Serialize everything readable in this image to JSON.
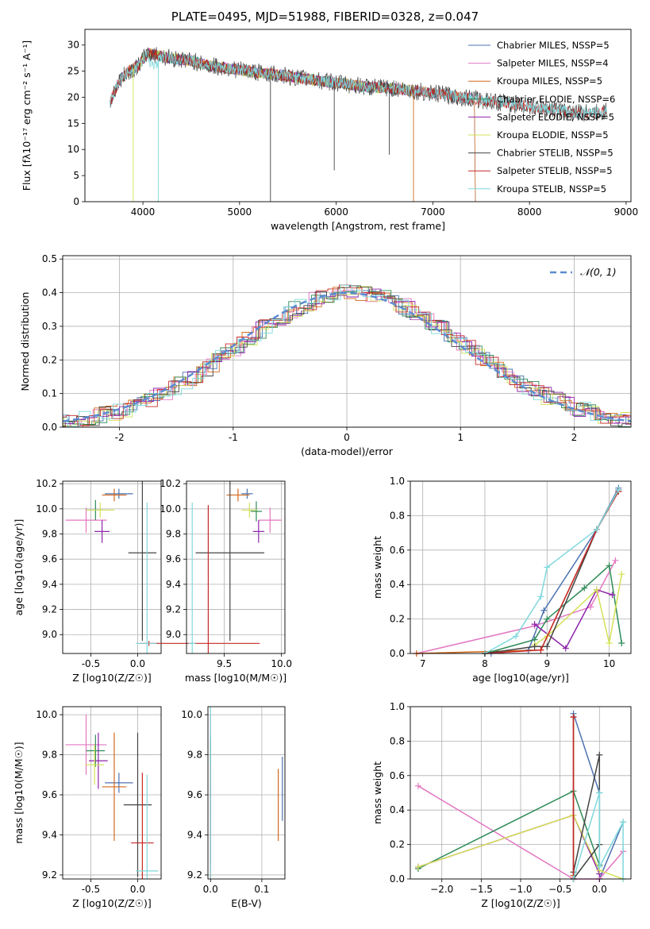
{
  "title": "PLATE=0495, MJD=51988, FIBERID=0328, z=0.047",
  "chart_data": [
    {
      "type": "line",
      "xlabel": "wavelength [Angstrom, rest frame]",
      "ylabel": "Flux [fλ10⁻¹⁷ erg cm⁻² s⁻¹ A⁻¹]",
      "xlim": [
        3400,
        9050
      ],
      "ylim": [
        0,
        33
      ],
      "xticks": [
        4000,
        5000,
        6000,
        7000,
        8000,
        9000
      ],
      "yticks": [
        0,
        5,
        10,
        15,
        20,
        25,
        30
      ],
      "legend_position": "top-right",
      "series": [
        {
          "name": "Chabrier MILES, NSSP=5",
          "color": "#4c72b0",
          "x_range": [
            3660,
            7430
          ]
        },
        {
          "name": "Salpeter MILES, NSSP=4",
          "color": "#e377c2",
          "x_range": [
            3660,
            7430
          ]
        },
        {
          "name": "Kroupa MILES, NSSP=5",
          "color": "#d2691e",
          "x_range": [
            3660,
            7430
          ]
        },
        {
          "name": "Chabrier ELODIE, NSSP=6",
          "color": "#2e8b57",
          "x_range": [
            3900,
            6800
          ]
        },
        {
          "name": "Salpeter ELODIE, NSSP=5",
          "color": "#8e24aa",
          "x_range": [
            3900,
            6800
          ]
        },
        {
          "name": "Kroupa ELODIE, NSSP=5",
          "color": "#d4e157",
          "x_range": [
            3900,
            6800
          ]
        },
        {
          "name": "Chabrier STELIB, NSSP=5",
          "color": "#444444",
          "x_range": [
            3660,
            8800
          ]
        },
        {
          "name": "Salpeter STELIB, NSSP=5",
          "color": "#c62828",
          "x_range": [
            3660,
            8800
          ]
        },
        {
          "name": "Kroupa STELIB, NSSP=5",
          "color": "#7fd8dc",
          "x_range": [
            3660,
            8800
          ]
        }
      ],
      "spectrum_approx": {
        "x": [
          3660,
          3750,
          3850,
          3950,
          4050,
          4150,
          4300,
          4500,
          4700,
          4900,
          5100,
          5300,
          5500,
          5700,
          5900,
          6100,
          6300,
          6500,
          6700,
          6900,
          7100,
          7300,
          7500,
          7700,
          7900,
          8100,
          8300,
          8500,
          8700,
          8800
        ],
        "y": [
          19,
          23,
          25,
          26,
          28.5,
          28,
          27.5,
          27,
          26,
          25.5,
          25,
          24.5,
          24,
          23.5,
          23,
          22.5,
          22,
          21.8,
          21.5,
          21,
          20.5,
          20,
          19.5,
          19,
          18.5,
          18,
          17.5,
          17,
          17,
          17.5
        ]
      }
    },
    {
      "type": "bar",
      "xlabel": "(data-model)/error",
      "ylabel": "Normed distribution",
      "xlim": [
        -2.5,
        2.5
      ],
      "ylim": [
        0,
        0.51
      ],
      "xticks": [
        -2,
        -1,
        0,
        1,
        2
      ],
      "yticks": [
        0.0,
        0.1,
        0.2,
        0.3,
        0.4,
        0.5
      ],
      "legend": [
        "𝒩(0, 1)"
      ],
      "legend_position": "top-right",
      "grid": true,
      "gaussian_series": [
        {
          "name": "𝒩(0, 1)",
          "color": "#4c72b0"
        }
      ]
    },
    {
      "type": "scatter",
      "xlabel": "Z [log10(Z/Z☉)]",
      "ylabel": "age  [log10(age/yr)]",
      "xlim": [
        -0.8,
        0.25
      ],
      "ylim": [
        8.85,
        10.22
      ],
      "xticks": [
        -0.5,
        0.0
      ],
      "yticks": [
        9.0,
        9.2,
        9.4,
        9.6,
        9.8,
        10.0,
        10.2
      ],
      "grid": true,
      "points": [
        {
          "x": -0.2,
          "y": 10.12,
          "ex": 0.15,
          "ey": 0.04,
          "color": "#4c72b0"
        },
        {
          "x": -0.25,
          "y": 10.11,
          "ex": 0.13,
          "ey": 0.05,
          "color": "#d2691e"
        },
        {
          "x": -0.55,
          "y": 9.91,
          "ex": 0.22,
          "ey": 0.1,
          "color": "#e377c2"
        },
        {
          "x": -0.45,
          "y": 9.99,
          "ex": 0.1,
          "ey": 0.08,
          "color": "#2e8b57"
        },
        {
          "x": -0.38,
          "y": 9.82,
          "ex": 0.08,
          "ey": 0.09,
          "color": "#8e24aa"
        },
        {
          "x": -0.4,
          "y": 9.99,
          "ex": 0.15,
          "ey": 0.06,
          "color": "#d4e157"
        },
        {
          "x": 0.05,
          "y": 9.65,
          "ex": 0.15,
          "ey": 0.7,
          "color": "#444444"
        },
        {
          "x": 0.12,
          "y": 8.93,
          "ex": 0.1,
          "ey": 0.02,
          "color": "#c62828"
        },
        {
          "x": 0.1,
          "y": 8.93,
          "ex": 0.12,
          "ey": 1.12,
          "color": "#7fd8dc"
        }
      ]
    },
    {
      "type": "scatter",
      "xlabel": "mass [log10(M/M☉)]",
      "ylabel": "",
      "xlim": [
        9.17,
        10.03
      ],
      "ylim": [
        8.85,
        10.22
      ],
      "xticks": [
        9.5,
        10.0
      ],
      "yticks": [
        9.0,
        9.2,
        9.4,
        9.6,
        9.8,
        10.0,
        10.2
      ],
      "grid": true,
      "points": [
        {
          "x": 9.7,
          "y": 10.12,
          "ex": 0.05,
          "ey": 0.04,
          "color": "#4c72b0"
        },
        {
          "x": 9.62,
          "y": 10.11,
          "ex": 0.1,
          "ey": 0.05,
          "color": "#d2691e"
        },
        {
          "x": 9.9,
          "y": 9.91,
          "ex": 0.1,
          "ey": 0.1,
          "color": "#e377c2"
        },
        {
          "x": 9.78,
          "y": 9.98,
          "ex": 0.05,
          "ey": 0.08,
          "color": "#2e8b57"
        },
        {
          "x": 9.8,
          "y": 9.82,
          "ex": 0.05,
          "ey": 0.09,
          "color": "#8e24aa"
        },
        {
          "x": 9.72,
          "y": 9.99,
          "ex": 0.07,
          "ey": 0.06,
          "color": "#d4e157"
        },
        {
          "x": 9.55,
          "y": 9.65,
          "ex": 0.3,
          "ey": 0.7,
          "color": "#444444"
        },
        {
          "x": 9.36,
          "y": 8.93,
          "ex": 0.45,
          "ey": 1.1,
          "color": "#c62828"
        },
        {
          "x": 9.22,
          "y": 8.93,
          "ex": 0.03,
          "ey": 1.12,
          "color": "#7fd8dc"
        }
      ]
    },
    {
      "type": "line",
      "xlabel": "age  [log10(age/yr)]",
      "ylabel": "mass weight",
      "xlim": [
        6.8,
        10.35
      ],
      "ylim": [
        0,
        1.0
      ],
      "xticks": [
        7,
        8,
        9,
        10
      ],
      "yticks": [
        0.0,
        0.2,
        0.4,
        0.6,
        0.8,
        1.0
      ],
      "grid": true,
      "series": [
        {
          "name": "Chabrier MILES",
          "color": "#4c72b0",
          "x": [
            8.1,
            8.7,
            8.95,
            9.8,
            10.15
          ],
          "y": [
            0.0,
            0.02,
            0.25,
            0.72,
            0.96
          ]
        },
        {
          "name": "Salpeter MILES",
          "color": "#e377c2",
          "x": [
            6.9,
            8.8,
            9.7,
            10.1
          ],
          "y": [
            0.0,
            0.16,
            0.27,
            0.54
          ]
        },
        {
          "name": "Kroupa MILES",
          "color": "#d2691e",
          "x": [
            6.9,
            8.9,
            9.8,
            10.15
          ],
          "y": [
            0.0,
            0.02,
            0.72,
            0.94
          ]
        },
        {
          "name": "Chabrier ELODIE",
          "color": "#2e8b57",
          "x": [
            8.0,
            8.8,
            9.0,
            9.6,
            10.0,
            10.2
          ],
          "y": [
            0.0,
            0.08,
            0.2,
            0.38,
            0.51,
            0.06
          ]
        },
        {
          "name": "Salpeter ELODIE",
          "color": "#8e24aa",
          "x": [
            8.8,
            9.3,
            9.8,
            10.05
          ],
          "y": [
            0.17,
            0.03,
            0.37,
            0.34
          ]
        },
        {
          "name": "Kroupa ELODIE",
          "color": "#d4e157",
          "x": [
            8.8,
            9.0,
            9.8,
            10.0,
            10.2
          ],
          "y": [
            0.05,
            0.1,
            0.37,
            0.06,
            0.46
          ]
        },
        {
          "name": "Chabrier STELIB",
          "color": "#444444",
          "x": [
            8.0,
            8.8,
            9.0,
            9.8,
            10.15
          ],
          "y": [
            0.0,
            0.04,
            0.04,
            0.72,
            0.95
          ]
        },
        {
          "name": "Salpeter STELIB",
          "color": "#c62828",
          "x": [
            8.0,
            8.9,
            9.8,
            10.15
          ],
          "y": [
            0.0,
            0.02,
            0.72,
            0.94
          ]
        },
        {
          "name": "Kroupa STELIB",
          "color": "#7fd8dc",
          "x": [
            8.0,
            8.5,
            8.9,
            9.0,
            9.8,
            10.15
          ],
          "y": [
            0.0,
            0.1,
            0.33,
            0.5,
            0.72,
            0.95
          ]
        }
      ]
    },
    {
      "type": "scatter",
      "xlabel": "Z [log10(Z/Z☉)]",
      "ylabel": "mass [log10(M/M☉)]",
      "xlim": [
        -0.8,
        0.25
      ],
      "ylim": [
        9.18,
        10.04
      ],
      "xticks": [
        -0.5,
        0.0
      ],
      "yticks": [
        9.2,
        9.4,
        9.6,
        9.8,
        10.0
      ],
      "grid": true,
      "points": [
        {
          "x": -0.2,
          "y": 9.66,
          "ex": 0.15,
          "ey": 0.05,
          "color": "#4c72b0"
        },
        {
          "x": -0.25,
          "y": 9.64,
          "ex": 0.13,
          "ey": 0.27,
          "color": "#d2691e"
        },
        {
          "x": -0.55,
          "y": 9.85,
          "ex": 0.22,
          "ey": 0.15,
          "color": "#e377c2"
        },
        {
          "x": -0.45,
          "y": 9.82,
          "ex": 0.1,
          "ey": 0.08,
          "color": "#2e8b57"
        },
        {
          "x": -0.42,
          "y": 9.77,
          "ex": 0.1,
          "ey": 0.14,
          "color": "#8e24aa"
        },
        {
          "x": -0.46,
          "y": 9.75,
          "ex": 0.1,
          "ey": 0.1,
          "color": "#d4e157"
        },
        {
          "x": 0.0,
          "y": 9.55,
          "ex": 0.15,
          "ey": 0.36,
          "color": "#444444"
        },
        {
          "x": 0.05,
          "y": 9.36,
          "ex": 0.12,
          "ey": 0.35,
          "color": "#c62828"
        },
        {
          "x": 0.1,
          "y": 9.22,
          "ex": 0.12,
          "ey": 0.48,
          "color": "#7fd8dc"
        }
      ]
    },
    {
      "type": "scatter",
      "xlabel": "E(B-V)",
      "ylabel": "",
      "xlim": [
        -0.005,
        0.145
      ],
      "ylim": [
        9.18,
        10.04
      ],
      "xticks": [
        0.0,
        0.1
      ],
      "yticks": [
        9.2,
        9.4,
        9.6,
        9.8,
        10.0
      ],
      "grid": true,
      "points": [
        {
          "x": 0.0,
          "y": 9.66,
          "ey": 0.18,
          "color": "#4c72b0"
        },
        {
          "x": 0.0,
          "y": 9.9,
          "ey": 0.1,
          "color": "#e377c2"
        },
        {
          "x": 0.132,
          "y": 9.55,
          "ey": 0.18,
          "color": "#d2691e"
        },
        {
          "x": 0.0,
          "y": 9.82,
          "ey": 0.08,
          "color": "#2e8b57"
        },
        {
          "x": 0.0,
          "y": 9.77,
          "ey": 0.1,
          "color": "#8e24aa"
        },
        {
          "x": 0.0,
          "y": 9.75,
          "ey": 0.1,
          "color": "#d4e157"
        },
        {
          "x": 0.0,
          "y": 9.55,
          "ey": 0.3,
          "color": "#444444"
        },
        {
          "x": 0.0,
          "y": 9.45,
          "ey": 0.3,
          "color": "#c62828"
        },
        {
          "x": 0.0,
          "y": 9.45,
          "ey": 0.6,
          "color": "#7fd8dc"
        },
        {
          "x": 0.14,
          "y": 9.63,
          "ey": 0.16,
          "color": "#4c72b0"
        }
      ]
    },
    {
      "type": "line",
      "xlabel": "Z [log10(Z/Z☉)]",
      "ylabel": "mass weight",
      "xlim": [
        -2.4,
        0.4
      ],
      "ylim": [
        0,
        1.0
      ],
      "xticks": [
        -2.0,
        -1.5,
        -1.0,
        -0.5,
        0.0
      ],
      "yticks": [
        0.0,
        0.2,
        0.4,
        0.6,
        0.8,
        1.0
      ],
      "grid": true,
      "series": [
        {
          "name": "Chabrier MILES",
          "color": "#4c72b0",
          "x": [
            -0.33,
            -0.33,
            0.0,
            0.0,
            0.3
          ],
          "y": [
            0.0,
            0.96,
            0.5,
            0.0,
            0.33
          ]
        },
        {
          "name": "Salpeter MILES",
          "color": "#e377c2",
          "x": [
            -2.3,
            -0.33,
            0.0,
            0.3
          ],
          "y": [
            0.54,
            0.0,
            0.0,
            0.16
          ]
        },
        {
          "name": "Kroupa MILES",
          "color": "#d2691e",
          "x": [
            -0.33,
            -0.33,
            -0.33
          ],
          "y": [
            0.0,
            0.94,
            0.02
          ]
        },
        {
          "name": "Chabrier ELODIE",
          "color": "#2e8b57",
          "x": [
            -2.3,
            -0.33,
            0.0
          ],
          "y": [
            0.06,
            0.51,
            0.08
          ]
        },
        {
          "name": "Salpeter ELODIE",
          "color": "#8e24aa",
          "x": [
            -2.3,
            -0.33,
            0.0
          ],
          "y": [
            0.07,
            0.37,
            0.03
          ]
        },
        {
          "name": "Kroupa ELODIE",
          "color": "#d4e157",
          "x": [
            -2.3,
            -0.33,
            0.0,
            0.3
          ],
          "y": [
            0.07,
            0.37,
            0.05,
            0.0
          ]
        },
        {
          "name": "Chabrier STELIB",
          "color": "#444444",
          "x": [
            -0.33,
            0.0,
            0.0,
            -0.33
          ],
          "y": [
            0.04,
            0.72,
            0.2,
            0.0
          ]
        },
        {
          "name": "Salpeter STELIB",
          "color": "#c62828",
          "x": [
            -0.33,
            -0.33
          ],
          "y": [
            0.0,
            0.94
          ]
        },
        {
          "name": "Kroupa STELIB",
          "color": "#7fd8dc",
          "x": [
            -0.33,
            0.0,
            0.0,
            0.3,
            0.3
          ],
          "y": [
            0.0,
            0.5,
            0.07,
            0.33,
            0.0
          ]
        }
      ]
    }
  ]
}
